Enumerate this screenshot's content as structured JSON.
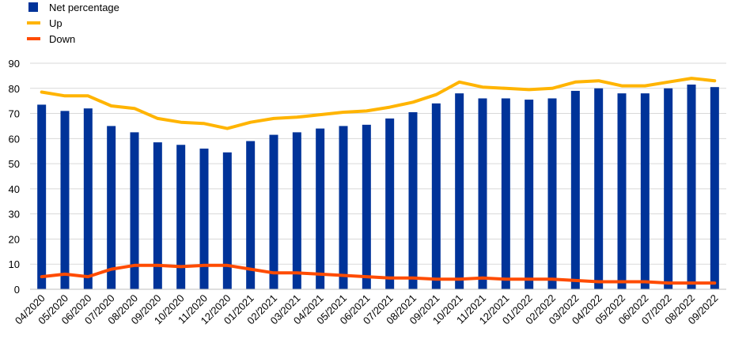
{
  "chart_data": {
    "type": "bar",
    "title": "",
    "xlabel": "",
    "ylabel": "",
    "ylim": [
      0,
      90
    ],
    "yticks": [
      0,
      10,
      20,
      30,
      40,
      50,
      60,
      70,
      80,
      90
    ],
    "grid": true,
    "legend_position": "top-left",
    "categories": [
      "04/2020",
      "05/2020",
      "06/2020",
      "07/2020",
      "08/2020",
      "09/2020",
      "10/2020",
      "11/2020",
      "12/2020",
      "01/2021",
      "02/2021",
      "03/2021",
      "04/2021",
      "05/2021",
      "06/2021",
      "07/2021",
      "08/2021",
      "09/2021",
      "10/2021",
      "11/2021",
      "12/2021",
      "01/2022",
      "02/2022",
      "03/2022",
      "04/2022",
      "05/2022",
      "06/2022",
      "07/2022",
      "08/2022",
      "09/2022"
    ],
    "series": [
      {
        "name": "Net percentage",
        "type": "bar",
        "color": "#003399",
        "values": [
          73.5,
          71,
          72,
          65,
          62.5,
          58.5,
          57.5,
          56,
          54.5,
          59,
          61.5,
          62.5,
          64,
          65,
          65.5,
          68,
          70.5,
          74,
          78,
          76,
          76,
          75.5,
          76,
          79,
          80,
          78,
          78,
          80,
          81.5,
          80.5
        ]
      },
      {
        "name": "Up",
        "type": "line",
        "color": "#ffb400",
        "values": [
          78.5,
          77,
          77,
          73,
          72,
          68,
          66.5,
          66,
          64,
          66.5,
          68,
          68.5,
          69.5,
          70.5,
          71,
          72.5,
          74.5,
          77.5,
          82.5,
          80.5,
          80,
          79.5,
          80,
          82.5,
          83,
          81,
          81,
          82.5,
          84,
          83
        ]
      },
      {
        "name": "Down",
        "type": "line",
        "color": "#ff4b00",
        "values": [
          5,
          6,
          5,
          8,
          9.5,
          9.5,
          9,
          9.5,
          9.5,
          8,
          6.5,
          6.5,
          6,
          5.5,
          5,
          4.5,
          4.5,
          4,
          4,
          4.5,
          4,
          4,
          4,
          3.5,
          3,
          3,
          3,
          2.5,
          2.5,
          2.5
        ]
      }
    ]
  }
}
